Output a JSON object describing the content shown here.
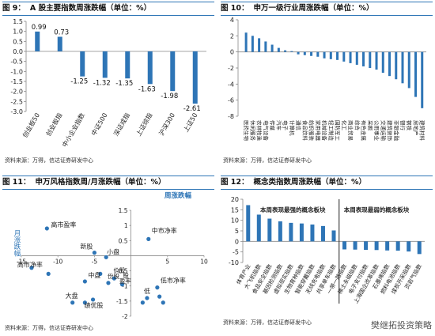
{
  "panels": [
    {
      "num": "图 9：",
      "title": "A 股主要指数周涨跌幅（单位：%）",
      "source": "资料来源：万得，信达证券研发中心"
    },
    {
      "num": "图 10：",
      "title": "申万一级行业周涨跌幅（单位：%）",
      "source": "资料来源：万得，信达证券研发中心"
    },
    {
      "num": "图 11：",
      "title": "申万风格指数周/月涨跌幅（单位：%）",
      "source": "资料来源：万得，信达证券研发中心"
    },
    {
      "num": "图 12：",
      "title": "概念类指数周涨跌幅（单位：%）",
      "source": "资料来源：万得，信达证券研发中心"
    }
  ],
  "watermark": "樊继拓投资策略",
  "colors": {
    "bar": "#2e75b6",
    "border": "#2e75b6",
    "point": "#2e75b6",
    "text": "#222222"
  },
  "chart_data": [
    {
      "type": "bar",
      "categories": [
        "创业板50",
        "创业板指",
        "中小企业指数",
        "中证500",
        "深证成指",
        "上证综指",
        "沪深300",
        "上证50"
      ],
      "values": [
        0.99,
        0.73,
        -1.25,
        -1.32,
        -1.35,
        -1.63,
        -1.98,
        -2.61
      ],
      "value_labels": [
        "0.99",
        "0.73",
        "-1.25",
        "-1.32",
        "-1.35",
        "-1.63",
        "-1.98",
        "-2.61"
      ],
      "ylim": [
        -3.0,
        1.5
      ],
      "yticks": [
        "1.5",
        "1.0",
        "0.5",
        "0.0",
        "-0.5",
        "-1.0",
        "-1.5",
        "-2.0",
        "-2.5",
        "-3.0"
      ],
      "ytick_values": [
        1.5,
        1.0,
        0.5,
        0.0,
        -0.5,
        -1.0,
        -1.5,
        -2.0,
        -2.5,
        -3.0
      ]
    },
    {
      "type": "bar",
      "categories": [
        "医药生物",
        "休闲服务",
        "农林牧渔",
        "电气设备",
        "传媒",
        "汽车",
        "电子",
        "计算机",
        "通信",
        "食品饮料",
        "纺织服装",
        "家用电器",
        "机械设备",
        "轻工制造",
        "国防军工",
        "化工",
        "商业贸易",
        "综合",
        "有色金属",
        "采掘",
        "公用事业",
        "交通运输",
        "建筑装饰",
        "非银金融",
        "银行",
        "钢铁",
        "房地产",
        "建筑材料"
      ],
      "values": [
        2.4,
        2.0,
        1.7,
        1.3,
        0.9,
        0.5,
        0.2,
        0.1,
        -0.3,
        -0.4,
        -0.5,
        -0.6,
        -0.8,
        -0.9,
        -1.0,
        -1.2,
        -1.4,
        -1.6,
        -1.8,
        -2.0,
        -2.2,
        -2.6,
        -3.0,
        -3.4,
        -3.9,
        -4.5,
        -5.6,
        -7.0
      ],
      "ylim": [
        -8,
        4
      ],
      "yticks": [
        "4",
        "2",
        "0",
        "-2",
        "-4",
        "-6",
        "-8"
      ],
      "ytick_values": [
        4,
        2,
        0,
        -2,
        -4,
        -6,
        -8
      ]
    },
    {
      "type": "scatter",
      "xlabel": "周涨跌幅",
      "ylabel": "月涨跌幅",
      "xlim": [
        -15,
        10
      ],
      "ylim": [
        -2,
        1.5
      ],
      "xticks": [
        "-15",
        "-10",
        "-5",
        "5",
        "10"
      ],
      "xtick_values": [
        -15,
        -10,
        -5,
        5,
        10
      ],
      "yticks": [
        "1.5",
        "1",
        "0.5",
        "-0.5",
        "-1",
        "-1.5",
        "-2"
      ],
      "ytick_values": [
        1.5,
        1,
        0.5,
        -0.5,
        -1,
        -1.5,
        -2
      ],
      "points": [
        {
          "label": "高市盈率",
          "x": -11.5,
          "y": 0.9
        },
        {
          "label": "中市净率",
          "x": 2.4,
          "y": 0.55
        },
        {
          "label": "新股",
          "x": -5.0,
          "y": 0.1
        },
        {
          "label": "小盘",
          "x": -3.4,
          "y": -0.05
        },
        {
          "label": "高市净率",
          "x": -13.6,
          "y": -0.4
        },
        {
          "label": "",
          "x": -11.3,
          "y": -0.6
        },
        {
          "label": "中盘",
          "x": -6.3,
          "y": -0.85
        },
        {
          "label": "",
          "x": -4.2,
          "y": -0.6
        },
        {
          "label": "",
          "x": -3.1,
          "y": -0.9
        },
        {
          "label": "",
          "x": -2.3,
          "y": -0.75
        },
        {
          "label": "",
          "x": -1.2,
          "y": -0.95
        },
        {
          "label": "低市净率",
          "x": 3.6,
          "y": -1.05
        },
        {
          "label": "低",
          "x": 2.2,
          "y": -1.4
        },
        {
          "label": "",
          "x": 3.9,
          "y": -1.35
        },
        {
          "label": "",
          "x": 1.6,
          "y": -1.55
        },
        {
          "label": "",
          "x": 4.4,
          "y": -1.55
        },
        {
          "label": "大盘",
          "x": -8.0,
          "y": -1.55
        },
        {
          "label": "",
          "x": -6.3,
          "y": -1.55
        },
        {
          "label": "绩优股",
          "x": -5.2,
          "y": -1.45
        }
      ],
      "overlap_labels": [
        "价股",
        "股",
        "份股",
        "盈率"
      ]
    },
    {
      "type": "bar",
      "categories": [
        "体育产业",
        "大飞机指数",
        "食品安全指数",
        "基因检测指数",
        "虚拟现实指数",
        "生物育种指数",
        "智能穿戴指数",
        "无线充电指数",
        "共享单车指数",
        "一带一路指数",
        "稀土永磁指数",
        "电子支付指数",
        "上海国企改革指数",
        "石墨烯指数",
        "燃料电池指数",
        "煤炭开采指数",
        "页岩气指数"
      ],
      "values": [
        17.2,
        12.7,
        10.8,
        9.5,
        8.8,
        8.5,
        8.0,
        7.3,
        5.2,
        -3.8,
        -3.9,
        -4.0,
        -4.1,
        -4.3,
        -4.4,
        -4.8,
        -6.0
      ],
      "ylim": [
        -10,
        20
      ],
      "yticks": [
        "20",
        "15",
        "10",
        "5",
        "0",
        "-5",
        "-10"
      ],
      "ytick_values": [
        20,
        15,
        10,
        5,
        0,
        -5,
        -10
      ],
      "annotations": [
        "本周表现最强的概念板块",
        "本周表现最弱的概念板块"
      ]
    }
  ]
}
